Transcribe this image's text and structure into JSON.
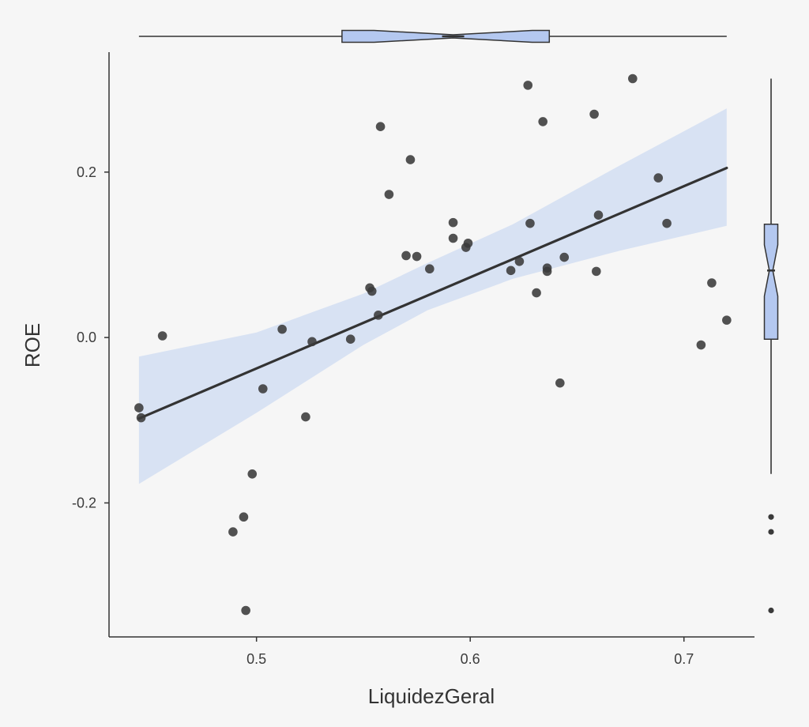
{
  "chart_data": {
    "type": "scatter",
    "xlabel": "LiquidezGeral",
    "ylabel": "ROE",
    "xlim": [
      0.431,
      0.733
    ],
    "ylim": [
      -0.362,
      0.345
    ],
    "x_ticks": [
      0.5,
      0.6,
      0.7
    ],
    "y_ticks": [
      -0.2,
      0.0,
      0.2
    ],
    "x_tick_labels": [
      "0.5",
      "0.6",
      "0.7"
    ],
    "y_tick_labels": [
      "-0.2",
      "0.0",
      "0.2"
    ],
    "grid": false,
    "colors": {
      "points": "#3a3a3a",
      "line": "#333333",
      "band": "#d6e0f2",
      "box_fill": "#b4c8f0",
      "box_stroke": "#333333",
      "axis": "#333333",
      "background": "#f6f6f6"
    },
    "points": [
      {
        "x": 0.445,
        "y": -0.085
      },
      {
        "x": 0.446,
        "y": -0.097
      },
      {
        "x": 0.456,
        "y": 0.002
      },
      {
        "x": 0.489,
        "y": -0.235
      },
      {
        "x": 0.494,
        "y": -0.217
      },
      {
        "x": 0.495,
        "y": -0.33
      },
      {
        "x": 0.498,
        "y": -0.165
      },
      {
        "x": 0.503,
        "y": -0.062
      },
      {
        "x": 0.512,
        "y": 0.01
      },
      {
        "x": 0.523,
        "y": -0.096
      },
      {
        "x": 0.526,
        "y": -0.005
      },
      {
        "x": 0.544,
        "y": -0.002
      },
      {
        "x": 0.553,
        "y": 0.06
      },
      {
        "x": 0.554,
        "y": 0.056
      },
      {
        "x": 0.557,
        "y": 0.027
      },
      {
        "x": 0.558,
        "y": 0.255
      },
      {
        "x": 0.562,
        "y": 0.173
      },
      {
        "x": 0.57,
        "y": 0.099
      },
      {
        "x": 0.572,
        "y": 0.215
      },
      {
        "x": 0.575,
        "y": 0.098
      },
      {
        "x": 0.581,
        "y": 0.083
      },
      {
        "x": 0.592,
        "y": 0.139
      },
      {
        "x": 0.592,
        "y": 0.12
      },
      {
        "x": 0.598,
        "y": 0.109
      },
      {
        "x": 0.599,
        "y": 0.114
      },
      {
        "x": 0.619,
        "y": 0.081
      },
      {
        "x": 0.623,
        "y": 0.092
      },
      {
        "x": 0.627,
        "y": 0.305
      },
      {
        "x": 0.628,
        "y": 0.138
      },
      {
        "x": 0.631,
        "y": 0.054
      },
      {
        "x": 0.634,
        "y": 0.261
      },
      {
        "x": 0.636,
        "y": 0.08
      },
      {
        "x": 0.636,
        "y": 0.084
      },
      {
        "x": 0.642,
        "y": -0.055
      },
      {
        "x": 0.644,
        "y": 0.097
      },
      {
        "x": 0.658,
        "y": 0.27
      },
      {
        "x": 0.659,
        "y": 0.08
      },
      {
        "x": 0.66,
        "y": 0.148
      },
      {
        "x": 0.676,
        "y": 0.313
      },
      {
        "x": 0.688,
        "y": 0.193
      },
      {
        "x": 0.692,
        "y": 0.138
      },
      {
        "x": 0.708,
        "y": -0.009
      },
      {
        "x": 0.713,
        "y": 0.066
      },
      {
        "x": 0.72,
        "y": 0.021
      }
    ],
    "regression": {
      "x_start": 0.445,
      "y_start": -0.098,
      "x_end": 0.72,
      "y_end": 0.205,
      "ci_band": [
        {
          "x": 0.445,
          "lower": -0.177,
          "upper": -0.023
        },
        {
          "x": 0.5,
          "lower": -0.091,
          "upper": 0.006
        },
        {
          "x": 0.55,
          "lower": -0.009,
          "upper": 0.053
        },
        {
          "x": 0.58,
          "lower": 0.033,
          "upper": 0.09
        },
        {
          "x": 0.62,
          "lower": 0.071,
          "upper": 0.137
        },
        {
          "x": 0.67,
          "lower": 0.105,
          "upper": 0.208
        },
        {
          "x": 0.72,
          "lower": 0.135,
          "upper": 0.277
        }
      ]
    },
    "x_boxplot": {
      "whisker_low": 0.445,
      "q1": 0.54,
      "median": 0.592,
      "q3": 0.637,
      "whisker_high": 0.72,
      "notch_low": 0.555,
      "notch_high": 0.629
    },
    "y_boxplot": {
      "whisker_low": -0.165,
      "q1": -0.002,
      "median": 0.081,
      "q3": 0.137,
      "whisker_high": 0.313,
      "notch_low": 0.05,
      "notch_high": 0.112,
      "outliers": [
        -0.217,
        -0.235,
        -0.33
      ]
    }
  }
}
